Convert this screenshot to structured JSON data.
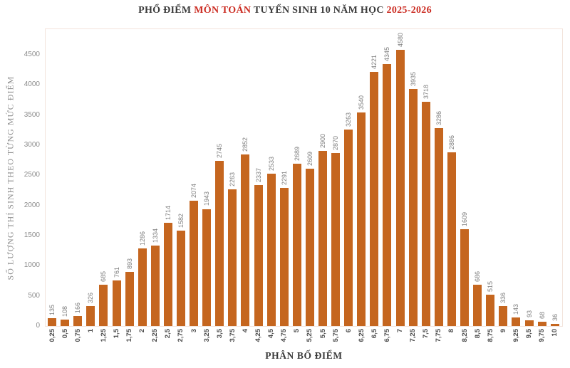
{
  "title": {
    "parts": [
      {
        "text": "PHỔ ĐIỂM ",
        "color": "#3a3a3a"
      },
      {
        "text": "MÔN TOÁN",
        "color": "#cb2b21"
      },
      {
        "text": " TUYỂN SINH 10 NĂM HỌC ",
        "color": "#3a3a3a"
      },
      {
        "text": "2025-2026",
        "color": "#cb2b21"
      }
    ]
  },
  "chart_data": {
    "type": "bar",
    "title": "PHỔ ĐIỂM MÔN TOÁN TUYỂN SINH 10 NĂM HỌC 2025-2026",
    "xlabel": "PHÂN BỐ ĐIỂM",
    "ylabel": "SỐ LƯỢNG THÍ SINH THEO TỪNG MỨC ĐIỂM",
    "categories": [
      "0,25",
      "0,5",
      "0,75",
      "1",
      "1,25",
      "1,5",
      "1,75",
      "2",
      "2,25",
      "2,5",
      "2,75",
      "3",
      "3,25",
      "3,5",
      "3,75",
      "4",
      "4,25",
      "4,5",
      "4,75",
      "5",
      "5,25",
      "5,5",
      "5,75",
      "6",
      "6,25",
      "6,5",
      "6,75",
      "7",
      "7,25",
      "7,5",
      "7,75",
      "8",
      "8,25",
      "8,5",
      "8,75",
      "9",
      "9,25",
      "9,5",
      "9,75",
      "10"
    ],
    "values": [
      135,
      108,
      166,
      326,
      685,
      761,
      893,
      1286,
      1334,
      1714,
      1582,
      2074,
      1943,
      2745,
      2263,
      2852,
      2337,
      2533,
      2291,
      2689,
      2609,
      2900,
      2870,
      3263,
      3540,
      4221,
      4345,
      4580,
      3935,
      3718,
      3286,
      2886,
      1609,
      686,
      515,
      336,
      143,
      93,
      68,
      36
    ],
    "ylim": [
      0,
      4500
    ],
    "yticks": [
      0,
      500,
      1000,
      1500,
      2000,
      2500,
      3000,
      3500,
      4000,
      4500
    ],
    "bar_color": "#c5661f",
    "grid": false,
    "legend": "none",
    "value_labels": "rotated-above-bars",
    "xtick_rotation": 90
  }
}
